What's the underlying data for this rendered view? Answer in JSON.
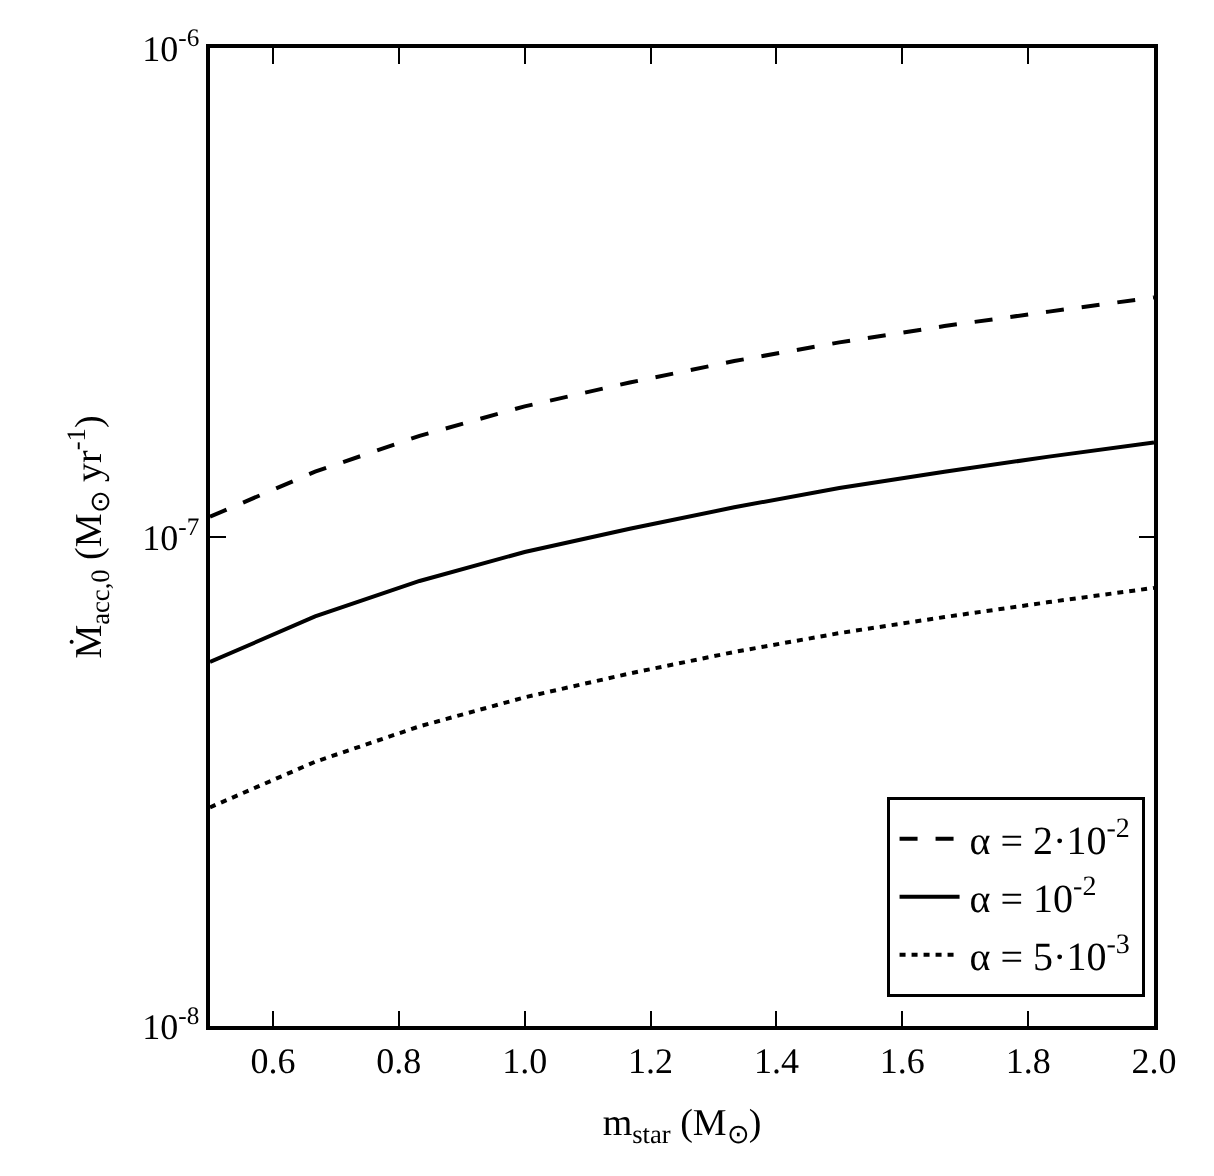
{
  "chart_data": {
    "type": "line",
    "xlabel": "m$_{star}$ (M$_{⊙}$)",
    "ylabel": "Ṁ$_{acc,0}$ (M$_{⊙}$ yr$^{-1}$)",
    "x": [
      0.5,
      0.667,
      0.833,
      1.0,
      1.167,
      1.333,
      1.5,
      1.667,
      1.833,
      2.0
    ],
    "series": [
      {
        "name": "α = 2·10$^{-2}$",
        "color": "#000000",
        "line_style": "dashed",
        "values": [
          1.1e-07,
          1.36e-07,
          1.61e-07,
          1.85e-07,
          2.07e-07,
          2.29e-07,
          2.5e-07,
          2.7e-07,
          2.89e-07,
          3.09e-07
        ]
      },
      {
        "name": "α = 10$^{-2}$",
        "color": "#000000",
        "line_style": "solid",
        "values": [
          5.55e-08,
          6.88e-08,
          8.13e-08,
          9.32e-08,
          1.04e-07,
          1.15e-07,
          1.26e-07,
          1.36e-07,
          1.46e-07,
          1.56e-07
        ]
      },
      {
        "name": "α = 5·10$^{-3}$",
        "color": "#000000",
        "line_style": "dotted",
        "values": [
          2.8e-08,
          3.47e-08,
          4.1e-08,
          4.7e-08,
          5.26e-08,
          5.82e-08,
          6.36e-08,
          6.86e-08,
          7.36e-08,
          7.87e-08
        ]
      }
    ],
    "xlim": [
      0.5,
      2.0
    ],
    "xticks": [
      0.6,
      0.8,
      {
        "value": 1,
        "label": "1.0"
      },
      1.2,
      1.4,
      1.6,
      1.8,
      {
        "value": 2,
        "label": "2.0"
      }
    ],
    "ylim": [
      1e-08,
      1e-06
    ],
    "yticks": [
      {
        "value": 1e-08,
        "label": "10$^{-8}$"
      },
      {
        "value": 1e-07,
        "label": "10$^{-7}$"
      },
      {
        "value": 1e-06,
        "label": "10$^{-6}$"
      }
    ],
    "log": "y",
    "legend": "bottom right",
    "marker": "none"
  }
}
